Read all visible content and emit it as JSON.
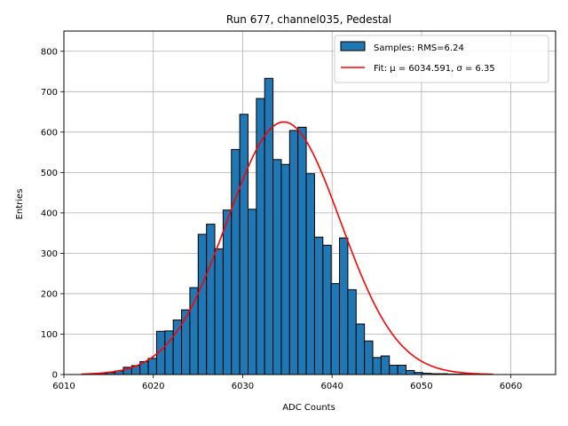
{
  "chart_data": {
    "type": "bar",
    "title": "Run 677, channel035, Pedestal",
    "xlabel": "ADC Counts",
    "ylabel": "Entries",
    "xlim": [
      6010,
      6065
    ],
    "ylim": [
      0,
      850
    ],
    "x_ticks": [
      6010,
      6020,
      6030,
      6040,
      6050,
      6060
    ],
    "y_ticks": [
      0,
      100,
      200,
      300,
      400,
      500,
      600,
      700,
      800
    ],
    "grid": true,
    "legend_position": "top-right",
    "histogram": {
      "name": "Samples: RMS=6.24",
      "color": "#1f77b4",
      "edgecolor": "#000000",
      "bin_edges": [
        6012.0,
        6012.93,
        6013.86,
        6014.79,
        6015.72,
        6016.65,
        6017.58,
        6018.51,
        6019.44,
        6020.37,
        6021.3,
        6022.23,
        6023.16,
        6024.09,
        6025.02,
        6025.95,
        6026.88,
        6027.81,
        6028.74,
        6029.67,
        6030.6,
        6031.53,
        6032.46,
        6033.39,
        6034.32,
        6035.25,
        6036.18,
        6037.11,
        6038.04,
        6038.97,
        6039.9,
        6040.83,
        6041.76,
        6042.69,
        6043.62,
        6044.55,
        6045.48,
        6046.41,
        6047.34,
        6048.27,
        6049.2,
        6050.13,
        6051.06,
        6051.99,
        6052.92,
        6053.85,
        6054.78,
        6055.71,
        6056.64,
        6057.57
      ],
      "counts": [
        1,
        1,
        3,
        5,
        9,
        18,
        22,
        32,
        40,
        107,
        108,
        135,
        160,
        215,
        347,
        372,
        311,
        407,
        557,
        644,
        409,
        683,
        733,
        532,
        520,
        604,
        612,
        497,
        340,
        320,
        225,
        338,
        210,
        125,
        83,
        42,
        46,
        23,
        23,
        10,
        5,
        3,
        2,
        2,
        1,
        1,
        1,
        1,
        1
      ]
    },
    "fit": {
      "name": "Fit: μ = 6034.591, σ = 6.35",
      "color": "#ff0000",
      "mu": 6034.591,
      "sigma": 6.35,
      "amplitude": 625,
      "x_range": [
        6012,
        6058
      ]
    }
  }
}
